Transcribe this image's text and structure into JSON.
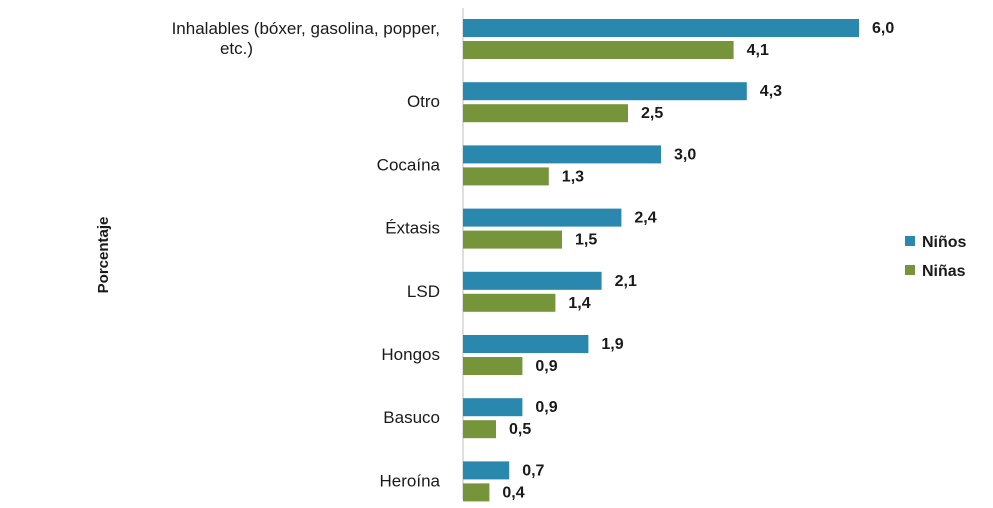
{
  "chart_data": {
    "type": "bar",
    "orientation": "horizontal",
    "categories": [
      [
        "Inhalables (bóxer, gasolina, popper,",
        "etc.)"
      ],
      "Otro",
      "Cocaína",
      "Éxtasis",
      "LSD",
      "Hongos",
      "Basuco",
      "Heroína"
    ],
    "series": [
      {
        "name": "Niños",
        "color": "#2a87ad",
        "values": [
          6.0,
          4.3,
          3.0,
          2.4,
          2.1,
          1.9,
          0.9,
          0.7
        ],
        "labels": [
          "6,0",
          "4,3",
          "3,0",
          "2,4",
          "2,1",
          "1,9",
          "0,9",
          "0,7"
        ]
      },
      {
        "name": "Niñas",
        "color": "#76943a",
        "values": [
          4.1,
          2.5,
          1.3,
          1.5,
          1.4,
          0.9,
          0.5,
          0.4
        ],
        "labels": [
          "4,1",
          "2,5",
          "1,3",
          "1,5",
          "1,4",
          "0,9",
          "0,5",
          "0,4"
        ]
      }
    ],
    "ylabel": "Porcentaje",
    "xlim": [
      0,
      6.0
    ],
    "grid": false,
    "legend": "right"
  }
}
